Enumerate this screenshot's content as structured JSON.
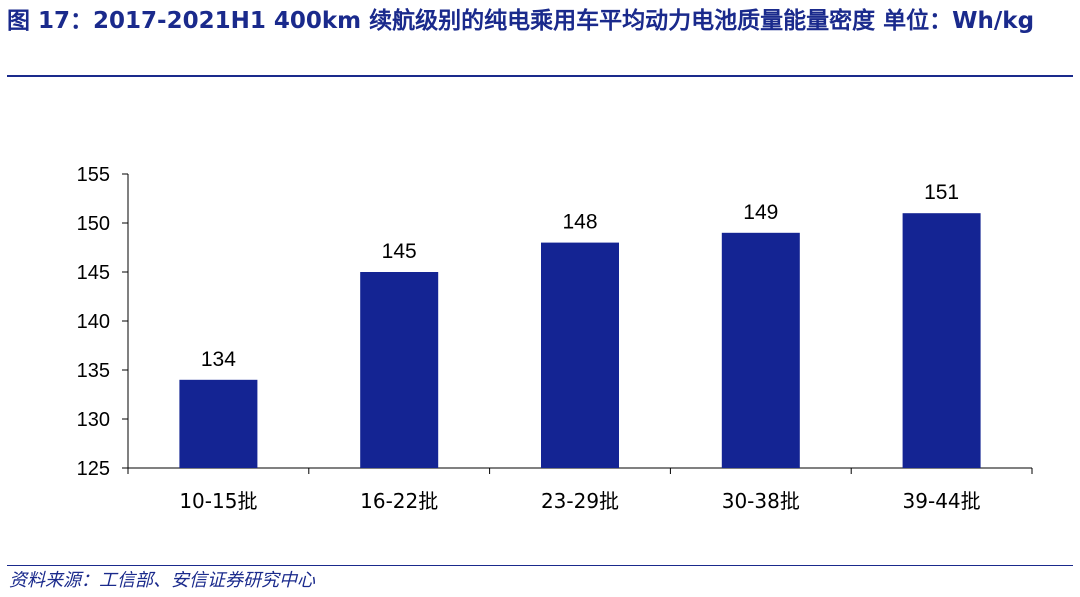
{
  "figure": {
    "title": "图 17：2017-2021H1 400km 续航级别的纯电乘用车平均动力电池质量能量密度  单位：Wh/kg",
    "source": "资料来源：工信部、安信证券研究中心"
  },
  "colors": {
    "bar": "#142493",
    "title": "#1a2a8c",
    "axis": "#000000"
  },
  "chart_data": {
    "type": "bar",
    "categories": [
      "10-15批",
      "16-22批",
      "23-29批",
      "30-38批",
      "39-44批"
    ],
    "values": [
      134,
      145,
      148,
      149,
      151
    ],
    "ylim": [
      125,
      155
    ],
    "yticks": [
      125,
      130,
      135,
      140,
      145,
      150,
      155
    ],
    "grid": false,
    "legend": "none"
  }
}
